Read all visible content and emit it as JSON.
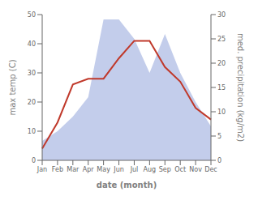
{
  "chart_data": {
    "type": "line",
    "categories": [
      "Jan",
      "Feb",
      "Mar",
      "Apr",
      "May",
      "Jun",
      "Jul",
      "Aug",
      "Sep",
      "Oct",
      "Nov",
      "Dec"
    ],
    "xlabel": "date (month)",
    "ylabel": "max temp (C)",
    "y2label": "med. precipitation (kg/m2)",
    "ylim": [
      0,
      50
    ],
    "yticks": [
      0,
      10,
      20,
      30,
      40,
      50
    ],
    "y2lim": [
      0,
      30
    ],
    "y2ticks": [
      0,
      5,
      10,
      15,
      20,
      25,
      30
    ],
    "series": [
      {
        "type": "area",
        "axis": "y2",
        "color": "#b8c4e8",
        "values": [
          4,
          6,
          9,
          13,
          29,
          29,
          25,
          18,
          26,
          18,
          12,
          7
        ]
      },
      {
        "type": "line",
        "color": "#c0392b",
        "values": [
          4,
          13,
          26,
          28,
          28,
          35,
          41,
          41,
          32,
          27,
          18,
          14
        ]
      }
    ]
  }
}
